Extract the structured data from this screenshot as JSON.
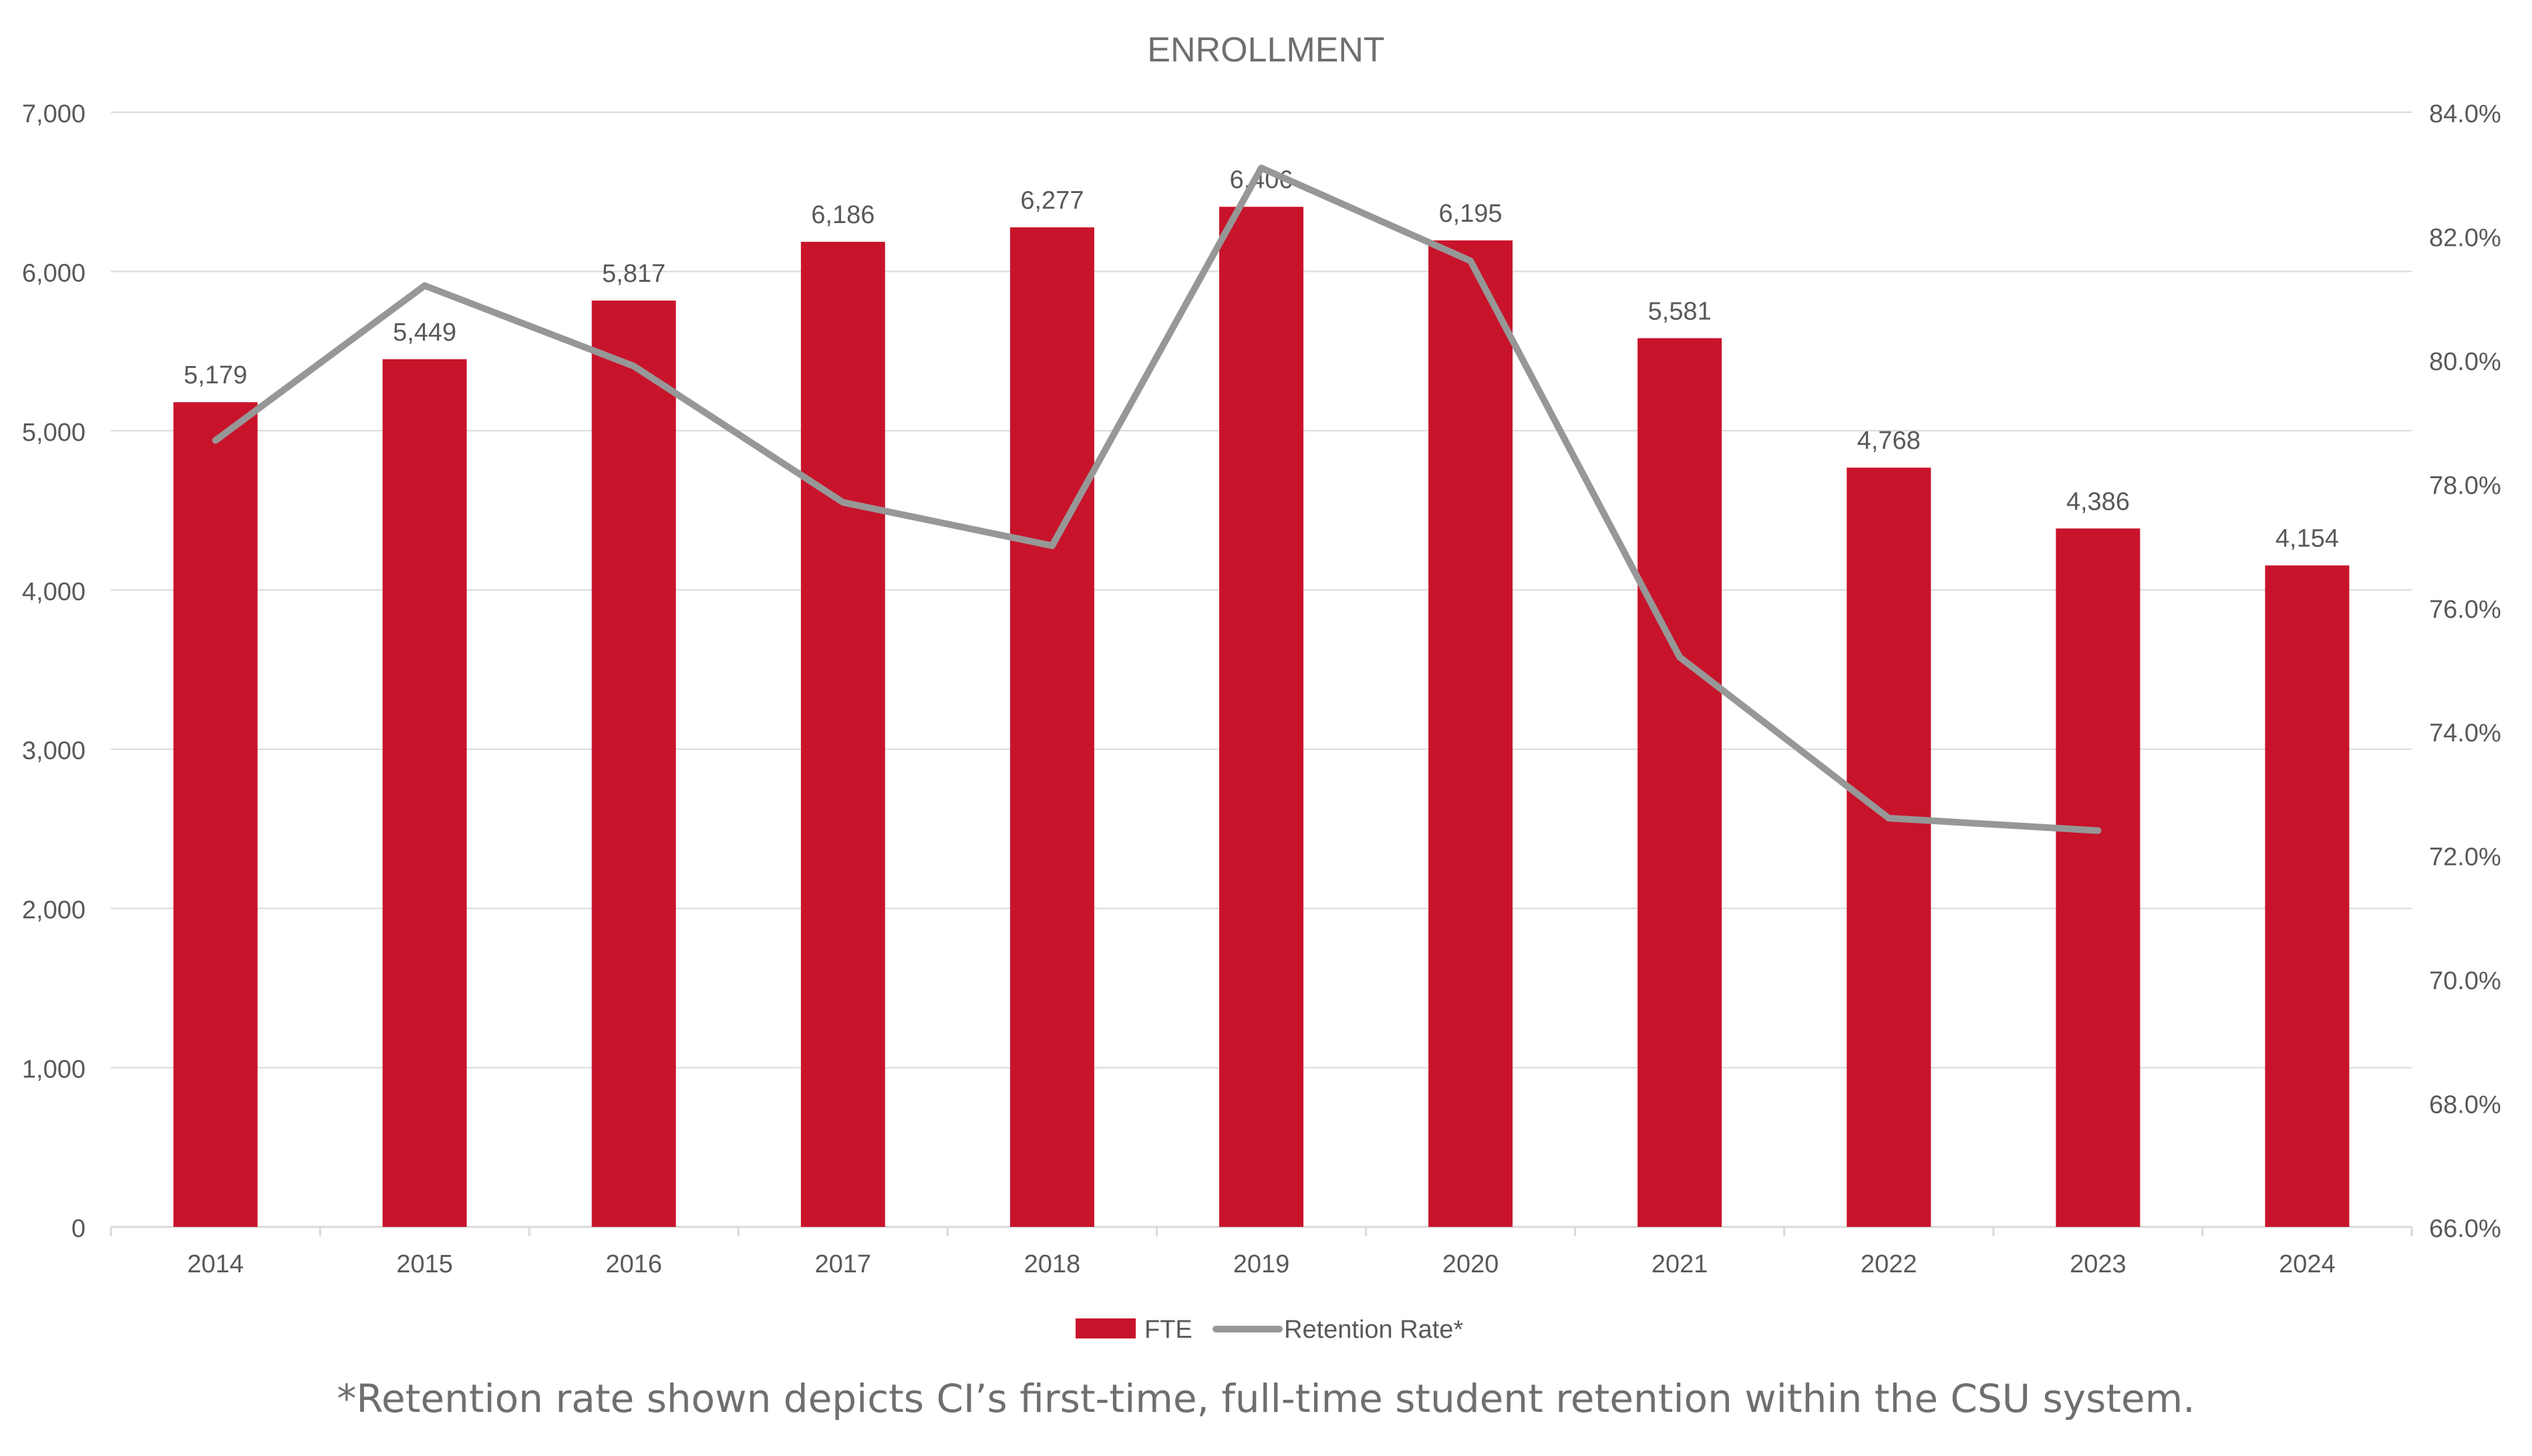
{
  "chart_data": {
    "type": "bar",
    "title": "ENROLLMENT",
    "categories": [
      "2014",
      "2015",
      "2016",
      "2017",
      "2018",
      "2019",
      "2020",
      "2021",
      "2022",
      "2023",
      "2024"
    ],
    "series": [
      {
        "name": "FTE",
        "type": "bar",
        "axis": "left",
        "values": [
          5179,
          5449,
          5817,
          6186,
          6277,
          6406,
          6195,
          5581,
          4768,
          4386,
          4154
        ],
        "labels": [
          "5,179",
          "5,449",
          "5,817",
          "6,186",
          "6,277",
          "6,406",
          "6,195",
          "5,581",
          "4,768",
          "4,386",
          "4,154"
        ]
      },
      {
        "name": "Retention Rate*",
        "type": "line",
        "axis": "right",
        "values": [
          78.7,
          81.2,
          79.9,
          77.7,
          77.0,
          83.1,
          81.6,
          75.2,
          72.6,
          72.4,
          null
        ]
      }
    ],
    "y_left": {
      "ylim": [
        0,
        7000
      ],
      "ticks": [
        0,
        1000,
        2000,
        3000,
        4000,
        5000,
        6000,
        7000
      ],
      "tick_labels": [
        "0",
        "1,000",
        "2,000",
        "3,000",
        "4,000",
        "5,000",
        "6,000",
        "7,000"
      ]
    },
    "y_right": {
      "ylim": [
        66,
        84
      ],
      "ticks": [
        66,
        68,
        70,
        72,
        74,
        76,
        78,
        80,
        82,
        84
      ],
      "tick_labels": [
        "66.0%",
        "68.0%",
        "70.0%",
        "72.0%",
        "74.0%",
        "76.0%",
        "78.0%",
        "80.0%",
        "82.0%",
        "84.0%"
      ]
    },
    "grid": true,
    "legend_position": "bottom",
    "footnote": "*Retention rate shown depicts CI’s first-time, full-time student retention within the CSU system."
  },
  "colors": {
    "bar": "#c8142b",
    "line": "#979797",
    "grid": "#d9d9d9",
    "axis_text": "#595959",
    "title_text": "#6f6f6f",
    "label_text": "#595959"
  }
}
